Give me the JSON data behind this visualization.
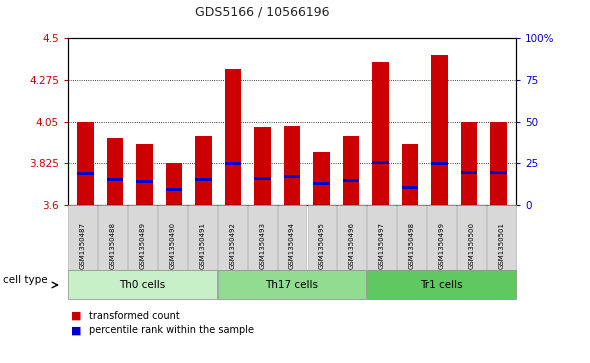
{
  "title": "GDS5166 / 10566196",
  "samples": [
    "GSM1350487",
    "GSM1350488",
    "GSM1350489",
    "GSM1350490",
    "GSM1350491",
    "GSM1350492",
    "GSM1350493",
    "GSM1350494",
    "GSM1350495",
    "GSM1350496",
    "GSM1350497",
    "GSM1350498",
    "GSM1350499",
    "GSM1350500",
    "GSM1350501"
  ],
  "red_values": [
    4.05,
    3.96,
    3.93,
    3.825,
    3.97,
    4.335,
    4.02,
    4.025,
    3.885,
    3.97,
    4.37,
    3.93,
    4.41,
    4.05,
    4.05
  ],
  "blue_values": [
    3.77,
    3.74,
    3.725,
    3.685,
    3.74,
    3.825,
    3.745,
    3.755,
    3.715,
    3.735,
    3.83,
    3.695,
    3.825,
    3.775,
    3.775
  ],
  "ymin": 3.6,
  "ymax": 4.5,
  "yticks": [
    3.6,
    3.825,
    4.05,
    4.275,
    4.5
  ],
  "right_yticks": [
    0,
    25,
    50,
    75,
    100
  ],
  "right_ytick_labels": [
    "0",
    "25",
    "50",
    "75",
    "100%"
  ],
  "groups": [
    {
      "label": "Th0 cells",
      "start": 0,
      "end": 5,
      "color": "#c8f0c8"
    },
    {
      "label": "Th17 cells",
      "start": 5,
      "end": 10,
      "color": "#90dc90"
    },
    {
      "label": "Tr1 cells",
      "start": 10,
      "end": 15,
      "color": "#60c860"
    }
  ],
  "bar_color": "#cc0000",
  "dot_color": "#0000cc",
  "bar_width": 0.55,
  "bg_color": "#ffffff",
  "cell_type_label": "cell type",
  "legend_red": "transformed count",
  "legend_blue": "percentile rank within the sample",
  "sample_box_color": "#d8d8d8"
}
